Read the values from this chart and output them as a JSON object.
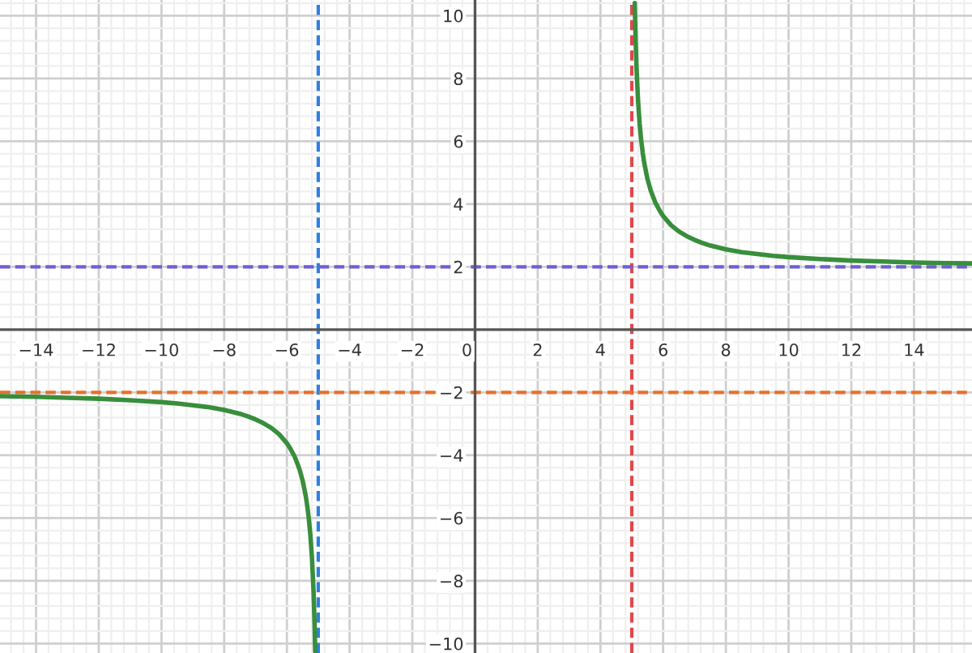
{
  "chart_data": {
    "type": "line",
    "series": [
      {
        "color": "#388e3c",
        "x": [
          -15.15,
          -14,
          -13,
          -12,
          -11,
          -10,
          -9.5,
          -9,
          -8.5,
          -8,
          -7.5,
          -7.25,
          -7,
          -6.75,
          -6.5,
          -6.25,
          -6,
          -5.9,
          -5.75,
          -5.6,
          -5.5,
          -5.4,
          -5.35,
          -5.3,
          -5.25,
          -5.2,
          -5.15,
          -5.12,
          -5.1,
          -5.098
        ],
        "values": [
          -2.12,
          -2.14,
          -2.17,
          -2.2,
          -2.25,
          -2.31,
          -2.35,
          -2.41,
          -2.47,
          -2.56,
          -2.68,
          -2.76,
          -2.86,
          -2.98,
          -3.13,
          -3.33,
          -3.62,
          -3.77,
          -4.05,
          -4.44,
          -4.8,
          -5.29,
          -5.62,
          -6.03,
          -6.56,
          -7.28,
          -8.35,
          -9.29,
          -10.15,
          -10.25
        ]
      },
      {
        "color": "#388e3c",
        "x": [
          5.095,
          5.1,
          5.12,
          5.15,
          5.2,
          5.25,
          5.3,
          5.35,
          5.4,
          5.5,
          5.6,
          5.75,
          5.9,
          6,
          6.25,
          6.5,
          6.75,
          7,
          7.25,
          7.5,
          8,
          8.5,
          9,
          9.5,
          10,
          11,
          12,
          13,
          14,
          15,
          15.85
        ],
        "values": [
          10.4,
          10.15,
          9.29,
          8.35,
          7.28,
          6.56,
          6.03,
          5.62,
          5.29,
          4.8,
          4.44,
          4.05,
          3.77,
          3.62,
          3.33,
          3.13,
          2.98,
          2.86,
          2.76,
          2.68,
          2.56,
          2.47,
          2.41,
          2.35,
          2.31,
          2.25,
          2.2,
          2.17,
          2.14,
          2.12,
          2.11
        ]
      }
    ],
    "ref_lines": [
      {
        "axis": "x",
        "value": -5,
        "color": "#2f80e0",
        "line_style": "dashed"
      },
      {
        "axis": "x",
        "value": 5,
        "color": "#e0474c",
        "line_style": "dashed"
      },
      {
        "axis": "y",
        "value": 2,
        "color": "#6f5fd6",
        "line_style": "dashed"
      },
      {
        "axis": "y",
        "value": -2,
        "color": "#e8702a",
        "line_style": "dashed"
      }
    ],
    "xlim": [
      -15.15,
      15.85
    ],
    "ylim": [
      -10.3,
      10.5
    ],
    "xticks": [
      {
        "value": -14,
        "label": "−14"
      },
      {
        "value": -12,
        "label": "−12"
      },
      {
        "value": -10,
        "label": "−10"
      },
      {
        "value": -8,
        "label": "−8"
      },
      {
        "value": -6,
        "label": "−6"
      },
      {
        "value": -4,
        "label": "−4"
      },
      {
        "value": -2,
        "label": "−2"
      },
      0,
      2,
      4,
      6,
      8,
      10,
      12,
      14
    ],
    "yticks": [
      {
        "value": -10,
        "label": "−10"
      },
      {
        "value": -8,
        "label": "−8"
      },
      {
        "value": -6,
        "label": "−6"
      },
      {
        "value": -4,
        "label": "−4"
      },
      {
        "value": -2,
        "label": "−2"
      },
      2,
      4,
      6,
      8,
      10
    ],
    "grid": true
  }
}
